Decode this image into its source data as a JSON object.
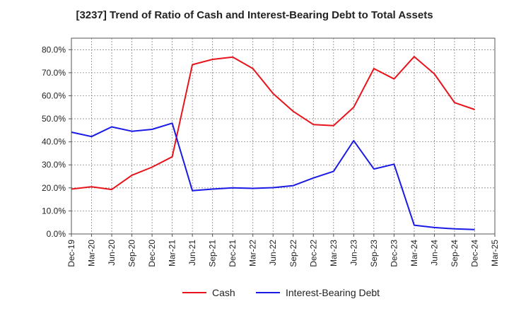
{
  "chart_data": {
    "type": "line",
    "title": "[3237]  Trend of Ratio of Cash and Interest-Bearing Debt to Total Assets",
    "xlabel": "",
    "ylabel": "",
    "categories": [
      "Dec-19",
      "Mar-20",
      "Jun-20",
      "Sep-20",
      "Dec-20",
      "Mar-21",
      "Jun-21",
      "Sep-21",
      "Dec-21",
      "Mar-22",
      "Jun-22",
      "Sep-22",
      "Dec-22",
      "Mar-23",
      "Jun-23",
      "Sep-23",
      "Dec-23",
      "Mar-24",
      "Jun-24",
      "Sep-24",
      "Dec-24",
      "Mar-25"
    ],
    "ylim": [
      0,
      85
    ],
    "yticks": [
      0,
      10,
      20,
      30,
      40,
      50,
      60,
      70,
      80
    ],
    "ytick_labels": [
      "0.0%",
      "10.0%",
      "20.0%",
      "30.0%",
      "40.0%",
      "50.0%",
      "60.0%",
      "70.0%",
      "80.0%"
    ],
    "grid": true,
    "legend_position": "bottom",
    "series": [
      {
        "name": "Cash",
        "color": "#e8141c",
        "values": [
          19.5,
          20.5,
          19.3,
          25.5,
          29.0,
          33.5,
          73.5,
          75.8,
          76.8,
          71.8,
          61.0,
          53.2,
          47.5,
          47.0,
          55.0,
          71.8,
          67.3,
          77.0,
          69.5,
          57.0,
          54.0,
          null
        ]
      },
      {
        "name": "Interest-Bearing Debt",
        "color": "#1a1ae6",
        "values": [
          44.2,
          42.3,
          46.5,
          44.6,
          45.4,
          48.1,
          18.8,
          19.5,
          20.0,
          19.8,
          20.1,
          21.0,
          24.3,
          27.2,
          40.5,
          28.2,
          30.3,
          3.8,
          2.8,
          2.2,
          1.9,
          null
        ]
      }
    ]
  }
}
